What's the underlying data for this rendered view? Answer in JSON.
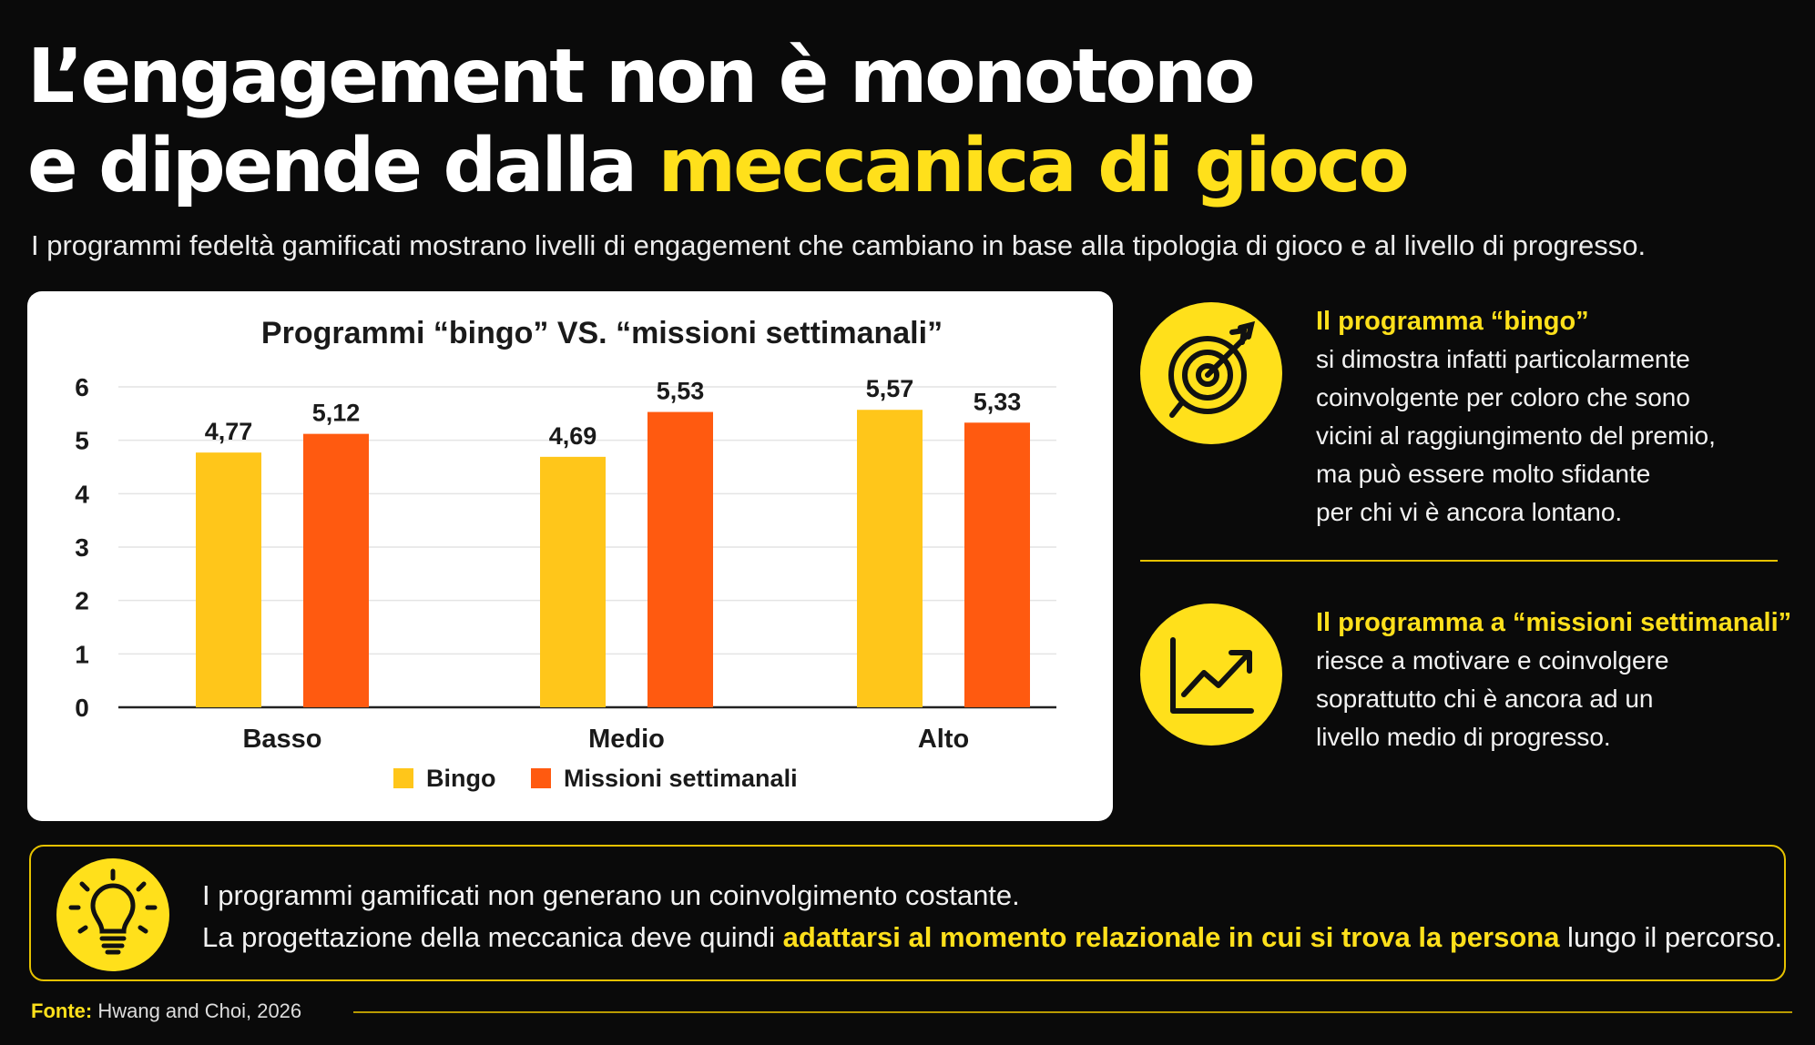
{
  "header": {
    "title_line1": "L’engagement non è monotono",
    "title_line2_prefix": "e dipende dalla ",
    "title_line2_accent": "meccanica di gioco",
    "subtitle": "I programmi fedeltà gamificati mostrano livelli di engagement che cambiano in base alla tipologia di gioco e al livello di progresso."
  },
  "chart_data": {
    "type": "bar",
    "title": "Programmi “bingo” VS. “missioni settimanali”",
    "categories": [
      "Basso",
      "Medio",
      "Alto"
    ],
    "series": [
      {
        "name": "Bingo",
        "values": [
          4.77,
          4.69,
          5.57
        ],
        "labels": [
          "4,77",
          "4,69",
          "5,57"
        ],
        "color": "#ffc61a"
      },
      {
        "name": "Missioni settimanali",
        "values": [
          5.12,
          5.53,
          5.33
        ],
        "labels": [
          "5,12",
          "5,53",
          "5,33"
        ],
        "color": "#ff5a10"
      }
    ],
    "yticks": [
      "0",
      "1",
      "2",
      "3",
      "4",
      "5",
      "6"
    ],
    "ylim": [
      0,
      6
    ],
    "xlabel": "",
    "ylabel": "",
    "grid": true,
    "legend": "bottom"
  },
  "panels": [
    {
      "icon": "target-arrow-icon",
      "heading": "Il programma “bingo”",
      "body_lines": [
        "si dimostra infatti particolarmente",
        "coinvolgente per coloro che sono",
        "vicini al raggiungimento del premio,",
        "ma può essere molto sfidante",
        "per chi vi è ancora lontano."
      ]
    },
    {
      "icon": "trend-chart-icon",
      "heading": "Il programma a “missioni settimanali”",
      "body_lines": [
        "riesce a motivare e coinvolgere",
        "soprattutto chi è ancora ad un",
        "livello medio di progresso."
      ]
    }
  ],
  "insight": {
    "icon": "lightbulb-icon",
    "line1": "I programmi gamificati non generano un coinvolgimento costante.",
    "line2_prefix": "La progettazione della meccanica deve quindi ",
    "line2_highlight": "adattarsi al momento relazionale in cui si trova la persona",
    "line2_suffix": " lungo il percorso."
  },
  "source": {
    "label": "Fonte:",
    "text": "Hwang and Choi, 2026"
  },
  "colors": {
    "background": "#0a0a0a",
    "accent_yellow": "#ffe01b",
    "bingo": "#ffc61a",
    "missioni": "#ff5a10"
  }
}
